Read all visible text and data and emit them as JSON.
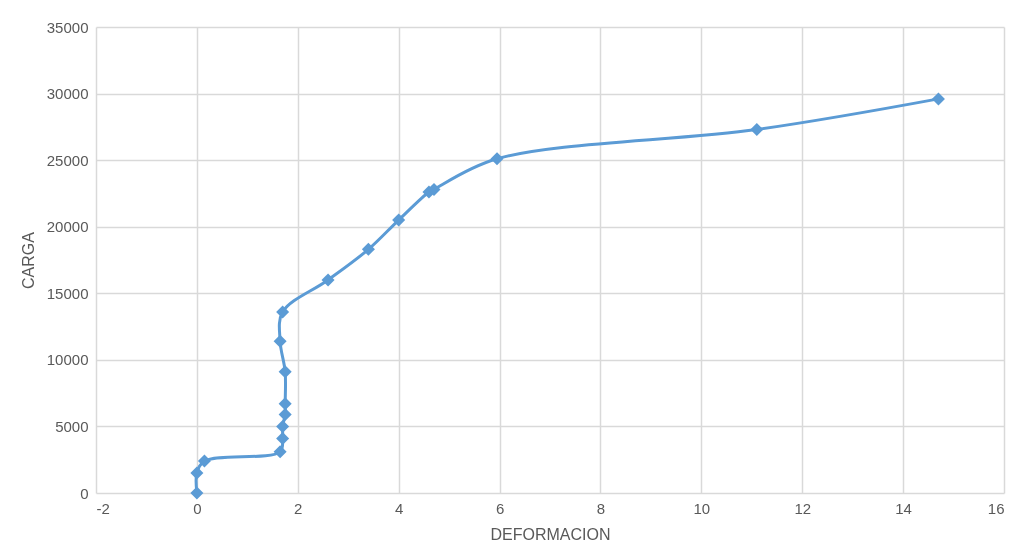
{
  "chart_data": {
    "type": "line",
    "xlabel": "DEFORMACION",
    "ylabel": "CARGA",
    "x": [
      0,
      0,
      0.15,
      1.65,
      1.7,
      1.7,
      1.75,
      1.75,
      1.75,
      1.65,
      1.7,
      2.6,
      3.4,
      4.0,
      4.6,
      4.7,
      5.95,
      11.1,
      14.7
    ],
    "series": [
      {
        "color": "#5b9bd5",
        "values": [
          0,
          1500,
          2400,
          3100,
          4100,
          5000,
          5900,
          6700,
          9100,
          11400,
          13600,
          16000,
          18300,
          20500,
          22600,
          22800,
          25100,
          27300,
          29600
        ]
      }
    ],
    "xlim": [
      -2,
      16
    ],
    "xticks": [
      -2,
      0,
      2,
      4,
      6,
      8,
      10,
      12,
      14,
      16
    ],
    "ylim": [
      0,
      35000
    ],
    "yticks": [
      0,
      5000,
      10000,
      15000,
      20000,
      25000,
      30000,
      35000
    ],
    "grid": true,
    "marker": "diamond",
    "line_style": "solid"
  }
}
